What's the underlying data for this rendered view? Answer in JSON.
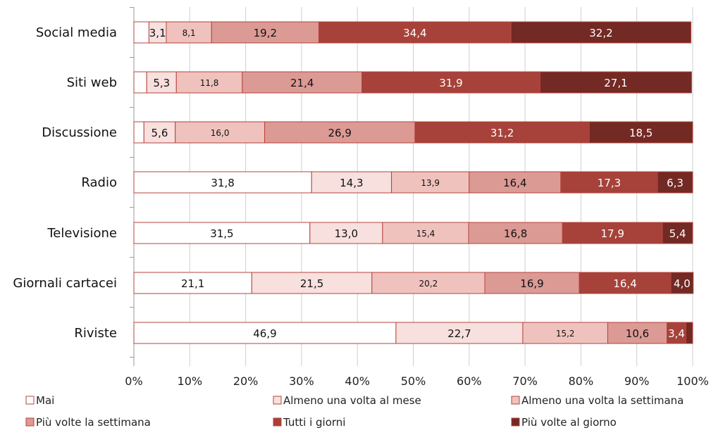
{
  "chart_data": {
    "type": "bar",
    "orientation": "horizontal",
    "stacked": true,
    "percent": true,
    "categories": [
      "Social media",
      "Siti web",
      "Discussione",
      "Radio",
      "Televisione",
      "Giornali cartacei",
      "Riviste"
    ],
    "series": [
      {
        "name": "Mai",
        "color": "#ffffff",
        "values": [
          2.7,
          2.3,
          1.8,
          31.8,
          31.5,
          21.1,
          46.9
        ],
        "labels": [
          "",
          "",
          "",
          "31,8",
          "31,5",
          "21,1",
          "46,9"
        ]
      },
      {
        "name": "Almeno una volta al mese",
        "color": "#f7e0de",
        "values": [
          3.1,
          5.3,
          5.6,
          14.3,
          13.0,
          21.5,
          22.7
        ],
        "labels": [
          "3,1",
          "5,3",
          "5,6",
          "14,3",
          "13,0",
          "21,5",
          "22,7"
        ]
      },
      {
        "name": "Almeno una volta la settimana",
        "color": "#efc2be",
        "values": [
          8.1,
          11.8,
          16.0,
          13.9,
          15.4,
          20.2,
          15.2
        ],
        "labels": [
          "8,1",
          "11,8",
          "16,0",
          "13,9",
          "15,4",
          "20,2",
          "15,2"
        ]
      },
      {
        "name": "Più volte la settimana",
        "color": "#dc9a95",
        "values": [
          19.2,
          21.4,
          26.9,
          16.4,
          16.8,
          16.9,
          10.6
        ],
        "labels": [
          "19,2",
          "21,4",
          "26,9",
          "16,4",
          "16,8",
          "16,9",
          "10,6"
        ]
      },
      {
        "name": "Tutti i giorni",
        "color": "#a6423a",
        "values": [
          34.4,
          31.9,
          31.2,
          17.3,
          17.9,
          16.4,
          3.4
        ],
        "labels": [
          "34,4",
          "31,9",
          "31,2",
          "17,3",
          "17,9",
          "16,4",
          "3,4"
        ]
      },
      {
        "name": "Più volte al giorno",
        "color": "#732924",
        "values": [
          32.2,
          27.1,
          18.5,
          6.3,
          5.4,
          4.0,
          1.2
        ],
        "labels": [
          "32,2",
          "27,1",
          "18,5",
          "6,3",
          "5,4",
          "4,0",
          ""
        ]
      }
    ],
    "x_ticks": [
      "0%",
      "10%",
      "20%",
      "30%",
      "40%",
      "50%",
      "60%",
      "70%",
      "80%",
      "90%",
      "100%"
    ],
    "xlim": [
      0,
      100
    ],
    "grid": true,
    "legend_position": "bottom"
  }
}
